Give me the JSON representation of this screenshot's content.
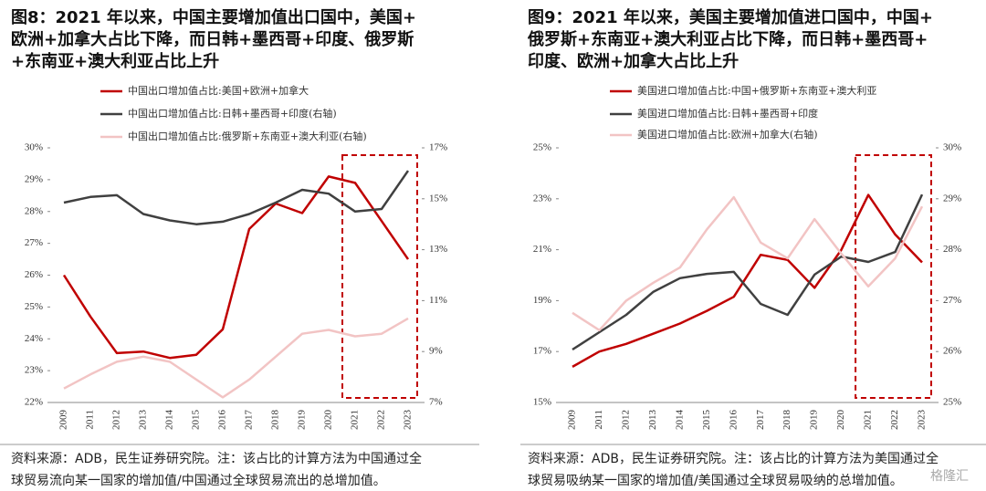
{
  "chart_data": [
    {
      "type": "line",
      "title": [
        "图8：2021 年以来，中国主要增加值出口国中，美国+",
        "欧洲+加拿大占比下降，而日韩+墨西哥+印度、俄罗斯",
        "+东南亚+澳大利亚占比上升"
      ],
      "categories": [
        "2009",
        "2011",
        "2012",
        "2013",
        "2014",
        "2015",
        "2016",
        "2017",
        "2018",
        "2019",
        "2020",
        "2021",
        "2022",
        "2023"
      ],
      "series": [
        {
          "name": "中国出口增加值占比:美国+欧洲+加拿大",
          "color": "#c00000",
          "values": [
            26.0,
            24.7,
            23.55,
            23.6,
            23.4,
            23.5,
            24.3,
            27.45,
            28.25,
            27.95,
            29.1,
            28.9,
            27.7,
            26.5
          ]
        },
        {
          "name": "中国出口增加值占比:日韩+墨西哥+印度(右轴)",
          "color": "#404040",
          "axis": "y2",
          "values": [
            14.85,
            15.07,
            15.14,
            14.4,
            14.15,
            14.0,
            14.1,
            14.4,
            14.85,
            15.35,
            15.2,
            14.5,
            14.6,
            16.1
          ]
        },
        {
          "name": "中国出口增加值占比:俄罗斯+东南亚+澳大利亚(右轴)",
          "color": "#f2c4c4",
          "axis": "y2",
          "values": [
            7.55,
            8.1,
            8.6,
            8.8,
            8.6,
            7.9,
            7.2,
            7.9,
            8.8,
            9.7,
            9.85,
            9.6,
            9.7,
            10.3
          ]
        }
      ],
      "ylim": [
        22,
        30
      ],
      "yticks": [
        {
          "value": 22,
          "label": "22%"
        },
        {
          "value": 23,
          "label": "23%"
        },
        {
          "value": 24,
          "label": "24%"
        },
        {
          "value": 25,
          "label": "25%"
        },
        {
          "value": 26,
          "label": "26%"
        },
        {
          "value": 27,
          "label": "27%"
        },
        {
          "value": 28,
          "label": "28%"
        },
        {
          "value": 29,
          "label": "29%"
        },
        {
          "value": 30,
          "label": "30%"
        }
      ],
      "y2lim": [
        7,
        17
      ],
      "y2ticks": [
        {
          "value": 7,
          "label": "7%"
        },
        {
          "value": 9,
          "label": "9%"
        },
        {
          "value": 11,
          "label": "11%"
        },
        {
          "value": 13,
          "label": "13%"
        },
        {
          "value": 15,
          "label": "15%"
        },
        {
          "value": 17,
          "label": "17%"
        }
      ],
      "footnote": [
        "资料来源：ADB，民生证券研究院。注：该占比的计算方法为中国通过全",
        "球贸易流向某一国家的增加值/中国通过全球贸易流出的总增加值。"
      ]
    },
    {
      "type": "line",
      "title": [
        "图9：2021 年以来，美国主要增加值进口国中，中国+",
        "俄罗斯+东南亚+澳大利亚占比下降，而日韩+墨西哥+",
        "印度、欧洲+加拿大占比上升"
      ],
      "categories": [
        "2009",
        "2011",
        "2012",
        "2013",
        "2014",
        "2015",
        "2016",
        "2017",
        "2018",
        "2019",
        "2020",
        "2021",
        "2022",
        "2023"
      ],
      "series": [
        {
          "name": "美国进口增加值占比:中国+俄罗斯+东南亚+澳大利亚",
          "color": "#c00000",
          "values": [
            16.4,
            17.0,
            17.3,
            17.7,
            18.1,
            18.6,
            19.15,
            20.8,
            20.6,
            19.5,
            21.0,
            23.15,
            21.6,
            20.5
          ]
        },
        {
          "name": "美国进口增加值占比:日韩+墨西哥+印度",
          "color": "#404040",
          "values": [
            17.08,
            17.76,
            18.44,
            19.34,
            19.88,
            20.05,
            20.13,
            18.87,
            18.44,
            20.02,
            20.73,
            20.52,
            20.91,
            23.17
          ]
        },
        {
          "name": "美国进口增加值占比:欧洲+加拿大(右轴)",
          "color": "#f2c4c4",
          "axis": "y2",
          "values": [
            26.76,
            26.42,
            27.0,
            27.35,
            27.65,
            28.4,
            29.03,
            28.14,
            27.83,
            28.6,
            27.92,
            27.28,
            27.83,
            28.85
          ]
        }
      ],
      "ylim": [
        15,
        25
      ],
      "yticks": [
        {
          "value": 15,
          "label": "15%"
        },
        {
          "value": 17,
          "label": "17%"
        },
        {
          "value": 19,
          "label": "19%"
        },
        {
          "value": 21,
          "label": "21%"
        },
        {
          "value": 23,
          "label": "23%"
        },
        {
          "value": 25,
          "label": "25%"
        }
      ],
      "y2lim": [
        25,
        30
      ],
      "y2ticks": [
        {
          "value": 25,
          "label": "25%"
        },
        {
          "value": 26,
          "label": "26%"
        },
        {
          "value": 27,
          "label": "27%"
        },
        {
          "value": 28,
          "label": "28%"
        },
        {
          "value": 29,
          "label": "29%"
        },
        {
          "value": 30,
          "label": "30%"
        }
      ],
      "footnote": [
        "资料来源：ADB，民生证券研究院。注：该占比的计算方法为美国通过全",
        "球贸易吸纳某一国家的增加值/美国通过全球贸易吸纳的总增加值。"
      ]
    }
  ],
  "watermark": "格隆汇"
}
